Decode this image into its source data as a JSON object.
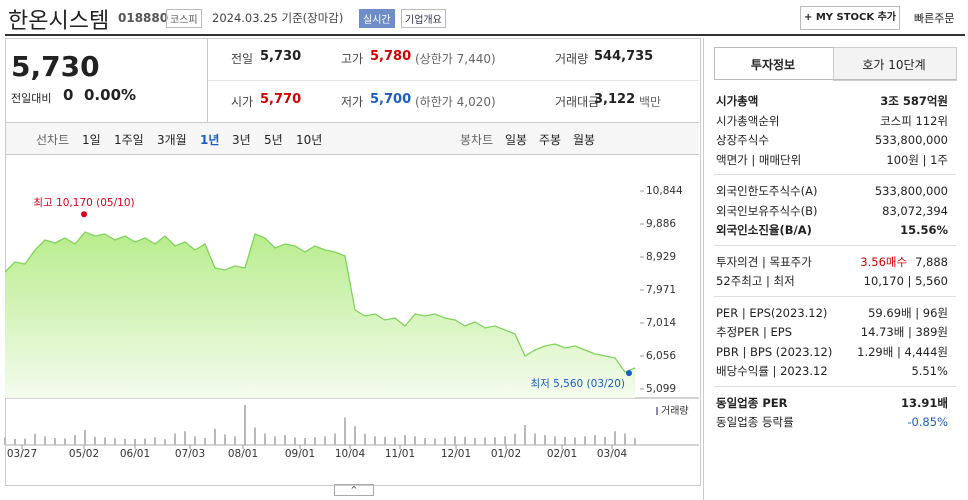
{
  "header": {
    "title": "한온시스템",
    "code": "018880",
    "market": "코스피",
    "date": "2024.03.25 기준(장마감)",
    "realtime": "실시간",
    "overview": "기업개요",
    "mystock": "+ MY STOCK 추가",
    "order": "빠른주문"
  },
  "summary": {
    "price": "5,730",
    "change_label": "전일대비",
    "change": "0",
    "rate": "0.00%"
  },
  "info": [
    {
      "label": "전일",
      "value": "5,730"
    },
    {
      "label": "고가",
      "value": "5,780",
      "sub": "(상한가 7,440)",
      "color": "#d60000"
    },
    {
      "label": "거래량",
      "value": "544,735"
    },
    {
      "label": "시가",
      "value": "5,770",
      "color": "#d60000"
    },
    {
      "label": "저가",
      "value": "5,700",
      "sub": "(하한가 4,020)",
      "color": "#1a5dc9"
    },
    {
      "label": "거래대금",
      "value": "3,122",
      "sub": "백만"
    }
  ],
  "tabs": {
    "line": [
      "선차트",
      "1일",
      "1주일",
      "3개월",
      "1년",
      "3년",
      "5년",
      "10년"
    ],
    "selected": 4,
    "candle": [
      "봉차트",
      "일봉",
      "주봉",
      "월봉"
    ]
  },
  "chart": {
    "type": "line",
    "color": "#7fd45a",
    "prices": [
      8493,
      8784,
      8726,
      9132,
      9422,
      9335,
      9480,
      9306,
      9654,
      9538,
      9596,
      9422,
      9538,
      9364,
      9480,
      9306,
      9538,
      9248,
      9364,
      9132,
      9306,
      8610,
      8552,
      8668,
      8610,
      9596,
      9480,
      9190,
      9306,
      9248,
      9074,
      9248,
      9132,
      9074,
      8958,
      7391,
      7217,
      7275,
      7101,
      7159,
      6926,
      7275,
      7217,
      7275,
      7159,
      7101,
      6926,
      7043,
      6868,
      6926,
      6810,
      6694,
      6056,
      6230,
      6346,
      6404,
      6288,
      6346,
      6230,
      6114,
      6056,
      5998,
      5592,
      5708
    ],
    "xlim": [
      0,
      63
    ],
    "ylim": [
      4838,
      11831
    ],
    "yticks": [
      {
        "value": 10844,
        "label": "10,844"
      },
      {
        "value": 9886,
        "label": "9,886"
      },
      {
        "value": 8929,
        "label": "8,929"
      },
      {
        "value": 7971,
        "label": "7,971"
      },
      {
        "value": 7014,
        "label": "7,014"
      },
      {
        "value": 6056,
        "label": "6,056"
      },
      {
        "value": 5099,
        "label": "5,099"
      }
    ],
    "xticks": [
      {
        "value": 1.7,
        "label": "03/27"
      },
      {
        "value": 7.9,
        "label": "05/02"
      },
      {
        "value": 13,
        "label": "06/01"
      },
      {
        "value": 18.5,
        "label": "07/03"
      },
      {
        "value": 23.8,
        "label": "08/01"
      },
      {
        "value": 29.5,
        "label": "09/01"
      },
      {
        "value": 34.5,
        "label": "10/04"
      },
      {
        "value": 39.5,
        "label": "11/01"
      },
      {
        "value": 45.1,
        "label": "12/01"
      },
      {
        "value": 50.1,
        "label": "01/02"
      },
      {
        "value": 55.7,
        "label": "02/01"
      },
      {
        "value": 60.7,
        "label": "03/04"
      }
    ],
    "annotations": [
      {
        "text": "최고 10,170 (05/10)",
        "x": 7.9,
        "value": 10170,
        "color": "#e0001b"
      },
      {
        "text": "최저 5,560 (03/20)",
        "x": 62.4,
        "value": 5560,
        "color": "#1a5dc9"
      }
    ],
    "volume_label": "거래량",
    "volume_color": "#b9b9b9",
    "volume": [
      620000,
      480000,
      510000,
      900000,
      700000,
      560000,
      530000,
      800000,
      1200000,
      650000,
      600000,
      540000,
      500000,
      480000,
      520000,
      610000,
      470000,
      900000,
      1100000,
      700000,
      560000,
      1300000,
      850000,
      700000,
      3200000,
      1400000,
      900000,
      700000,
      800000,
      600000,
      560000,
      620000,
      700000,
      900000,
      2200000,
      1500000,
      900000,
      700000,
      650000,
      600000,
      800000,
      700000,
      560000,
      520000,
      600000,
      700000,
      650000,
      560000,
      600000,
      620000,
      700000,
      900000,
      1600000,
      900000,
      800000,
      700000,
      650000,
      600000,
      700000,
      800000,
      650000,
      1100000,
      900000,
      544735
    ]
  },
  "panel": {
    "tabs": [
      "투자정보",
      "호가 10단계"
    ],
    "sections": [
      [
        {
          "label": "시가총액",
          "value": "3조 587억원",
          "bold": true
        },
        {
          "label": "시가총액순위",
          "value": "코스피 112위"
        },
        {
          "label": "상장주식수",
          "value": "533,800,000"
        },
        {
          "label": "액면가 | 매매단위",
          "value": "100원 | 1주"
        }
      ],
      [
        {
          "label": "외국인한도주식수(A)",
          "value": "533,800,000"
        },
        {
          "label": "외국인보유주식수(B)",
          "value": "83,072,394"
        },
        {
          "label": "외국인소진율(B/A)",
          "value": "15.56%",
          "bold": true
        }
      ],
      [
        {
          "label": "투자의견 | 목표주가",
          "value": "3.56매수",
          "value2": "7,888",
          "color": "#d60000"
        },
        {
          "label": "52주최고 | 최저",
          "value": "10,170 | 5,560"
        }
      ],
      [
        {
          "label": "PER | EPS(2023.12)",
          "value": "59.69배 | 96원"
        },
        {
          "label": "추정PER | EPS",
          "value": "14.73배 | 389원"
        },
        {
          "label": "PBR | BPS (2023.12)",
          "value": "1.29배 | 4,444원"
        },
        {
          "label": "배당수익률 | 2023.12",
          "value": "5.51%"
        }
      ],
      [
        {
          "label": "동일업종 PER",
          "value": "13.91배",
          "bold": true
        },
        {
          "label": "동일업종 등락률",
          "value": "-0.85%",
          "color": "#1a5dc9"
        }
      ]
    ]
  }
}
